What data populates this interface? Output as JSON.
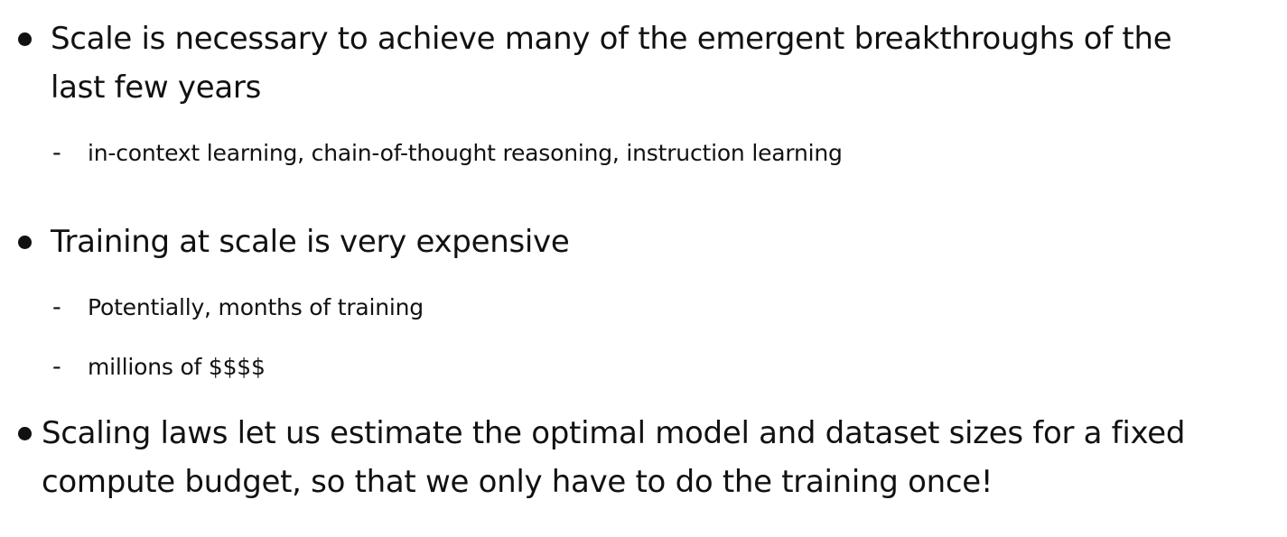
{
  "bullets": [
    {
      "lines": [
        "Scale is necessary to achieve many of the emergent breakthroughs of the",
        "last few years"
      ],
      "subitems": [
        "in-context learning, chain-of-thought reasoning, instruction learning"
      ]
    },
    {
      "lines": [
        "Training at scale is very expensive"
      ],
      "subitems": [
        "Potentially, months of training",
        "millions of $$$$"
      ]
    },
    {
      "lines": [
        "Scaling laws let us estimate the optimal model and dataset sizes for a fixed",
        "compute budget, so that we only have to do the training once!"
      ],
      "subitems": []
    }
  ],
  "dash_glyph": "-"
}
